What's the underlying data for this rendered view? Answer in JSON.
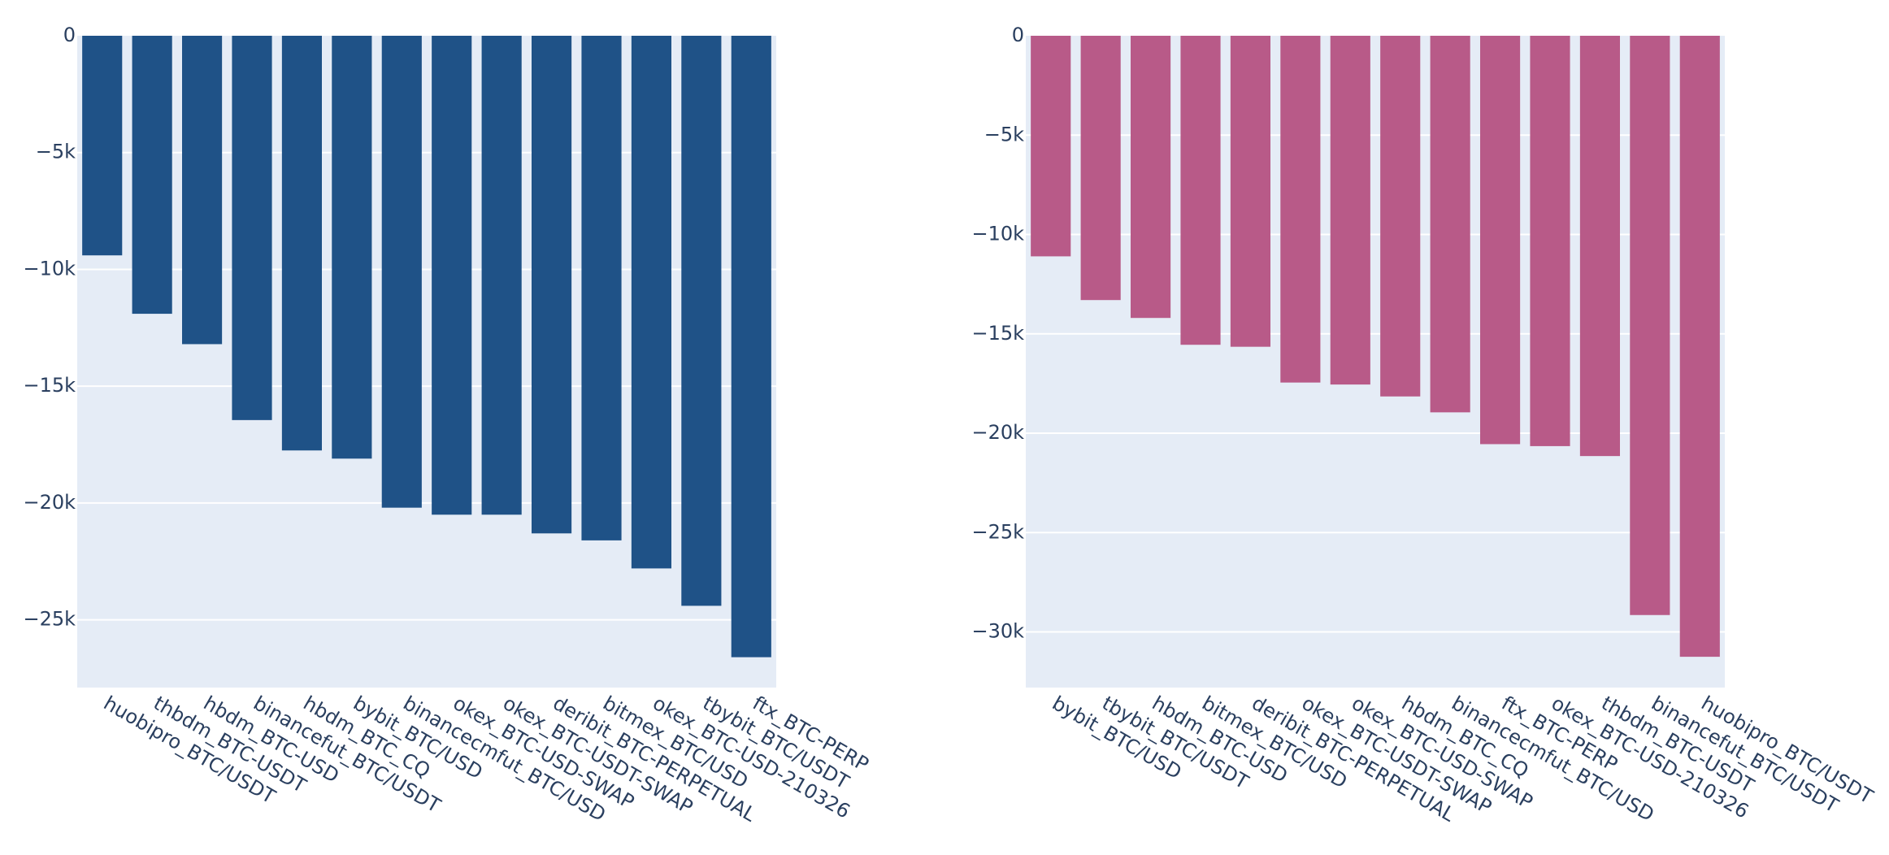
{
  "colors": {
    "plot_background": "#e5ecf6",
    "grid": "#ffffff",
    "text": "#2a3f5f"
  },
  "chart_data": [
    {
      "type": "bar",
      "series": [
        {
          "name": "left",
          "color": "#1f5287"
        }
      ],
      "categories": [
        "huobipro_BTC/USDT",
        "thbdm_BTC-USDT",
        "hbdm_BTC-USD",
        "binancefut_BTC/USDT",
        "hbdm_BTC_CQ",
        "bybit_BTC/USD",
        "binancecmfut_BTC/USD",
        "okex_BTC-USD-SWAP",
        "okex_BTC-USDT-SWAP",
        "deribit_BTC-PERPETUAL",
        "bitmex_BTC/USD",
        "okex_BTC-USD-210326",
        "tbybit_BTC/USDT",
        "ftx_BTC-PERP"
      ],
      "values": [
        -9400,
        -11900,
        -13200,
        -16450,
        -17750,
        -18100,
        -20200,
        -20500,
        -20500,
        -21300,
        -21600,
        -22800,
        -24400,
        -26600
      ],
      "ylim": [
        -27900,
        0
      ],
      "yticks": [
        0,
        -5000,
        -10000,
        -15000,
        -20000,
        -25000
      ],
      "ytick_labels": [
        "0",
        "−5k",
        "−10k",
        "−15k",
        "−20k",
        "−25k"
      ],
      "grid": true,
      "title": "",
      "xlabel": "",
      "ylabel": ""
    },
    {
      "type": "bar",
      "series": [
        {
          "name": "right",
          "color": "#b85a88"
        }
      ],
      "categories": [
        "bybit_BTC/USD",
        "tbybit_BTC/USDT",
        "hbdm_BTC-USD",
        "bitmex_BTC/USD",
        "deribit_BTC-PERPETUAL",
        "okex_BTC-USDT-SWAP",
        "okex_BTC-USD-SWAP",
        "hbdm_BTC_CQ",
        "binancecmfut_BTC/USD",
        "ftx_BTC-PERP",
        "okex_BTC-USD-210326",
        "thbdm_BTC-USDT",
        "binancefut_BTC/USDT",
        "huobipro_BTC/USDT"
      ],
      "values": [
        -11100,
        -13300,
        -14200,
        -15550,
        -15650,
        -17450,
        -17550,
        -18150,
        -18950,
        -20550,
        -20650,
        -21150,
        -29150,
        -31250
      ],
      "ylim": [
        -32800,
        0
      ],
      "yticks": [
        0,
        -5000,
        -10000,
        -15000,
        -20000,
        -25000,
        -30000
      ],
      "ytick_labels": [
        "0",
        "−5k",
        "−10k",
        "−15k",
        "−20k",
        "−25k",
        "−30k"
      ],
      "grid": true,
      "title": "",
      "xlabel": "",
      "ylabel": ""
    }
  ]
}
